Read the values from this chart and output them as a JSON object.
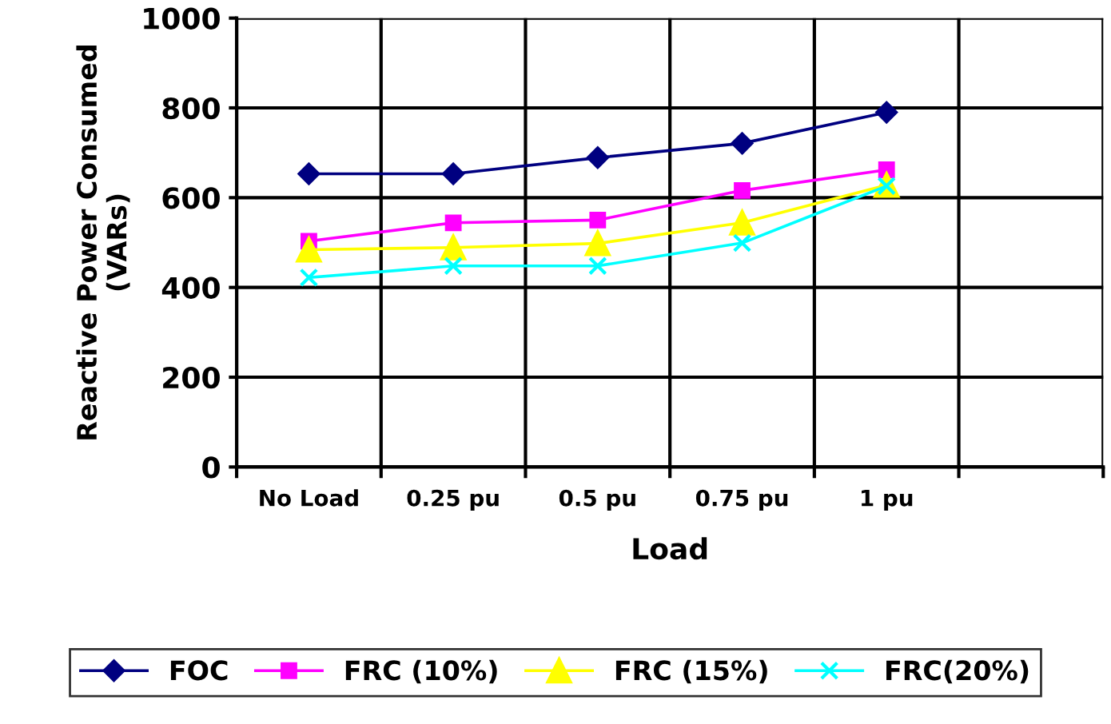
{
  "chart_data": {
    "type": "line",
    "xlabel": "Load",
    "ylabel": "Reactive Power Consumed\n(VARs)",
    "categories": [
      "No Load",
      "0.25 pu",
      "0.5 pu",
      "0.75 pu",
      "1 pu",
      null
    ],
    "ylim": [
      0,
      1000
    ],
    "yticks": [
      0,
      200,
      400,
      600,
      800,
      1000
    ],
    "grid": true,
    "legend": "bottom",
    "series": [
      {
        "name": "FOC",
        "color": "#000080",
        "marker": "diamond",
        "values": [
          653,
          653,
          689,
          721,
          790,
          null
        ]
      },
      {
        "name": "FRC (10%)",
        "color": "#ff00ff",
        "marker": "square",
        "values": [
          503,
          544,
          550,
          616,
          662,
          null
        ]
      },
      {
        "name": "FRC (15%)",
        "color": "#ffff00",
        "marker": "triangle",
        "values": [
          484,
          489,
          498,
          544,
          628,
          null
        ]
      },
      {
        "name": "FRC(20%)",
        "color": "#00ffff",
        "marker": "cross",
        "values": [
          422,
          448,
          448,
          499,
          626,
          null
        ]
      }
    ]
  }
}
